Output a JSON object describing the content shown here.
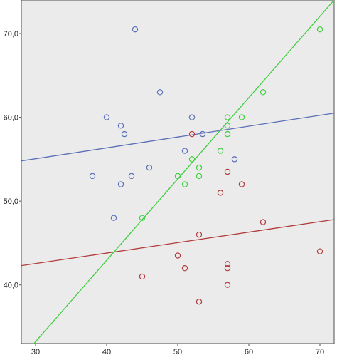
{
  "chart_data": {
    "type": "scatter",
    "title": "",
    "xlabel": "",
    "ylabel": "",
    "xlim": [
      28,
      72
    ],
    "ylim": [
      33,
      74
    ],
    "x_ticks": [
      {
        "value": 30,
        "label": "30"
      },
      {
        "value": 40,
        "label": "40"
      },
      {
        "value": 50,
        "label": "50"
      },
      {
        "value": 60,
        "label": "60"
      },
      {
        "value": 70,
        "label": "70"
      }
    ],
    "y_ticks": [
      {
        "value": 40,
        "label": "40,0"
      },
      {
        "value": 50,
        "label": "50,0"
      },
      {
        "value": 60,
        "label": "60,0"
      },
      {
        "value": 70,
        "label": "70,0"
      }
    ],
    "grid": false,
    "background": "#ebebeb",
    "series": [
      {
        "color": "#5a6fb8",
        "points": [
          {
            "x": 38,
            "y": 53
          },
          {
            "x": 40,
            "y": 60
          },
          {
            "x": 41,
            "y": 48
          },
          {
            "x": 42,
            "y": 59
          },
          {
            "x": 42,
            "y": 52
          },
          {
            "x": 42.5,
            "y": 58
          },
          {
            "x": 43.5,
            "y": 53
          },
          {
            "x": 44,
            "y": 70.5
          },
          {
            "x": 46,
            "y": 54
          },
          {
            "x": 47.5,
            "y": 63
          },
          {
            "x": 51,
            "y": 56
          },
          {
            "x": 52,
            "y": 60
          },
          {
            "x": 53.5,
            "y": 58
          },
          {
            "x": 58,
            "y": 55
          }
        ],
        "fit_line": {
          "x": [
            28,
            72
          ],
          "y": [
            54.8,
            60.5
          ]
        }
      },
      {
        "color": "#b23a3a",
        "points": [
          {
            "x": 45,
            "y": 41
          },
          {
            "x": 50,
            "y": 43.5
          },
          {
            "x": 51,
            "y": 42
          },
          {
            "x": 52,
            "y": 58
          },
          {
            "x": 53,
            "y": 46
          },
          {
            "x": 53,
            "y": 38
          },
          {
            "x": 56,
            "y": 51
          },
          {
            "x": 57,
            "y": 53.5
          },
          {
            "x": 57,
            "y": 42.5
          },
          {
            "x": 57,
            "y": 42
          },
          {
            "x": 57,
            "y": 40
          },
          {
            "x": 59,
            "y": 52
          },
          {
            "x": 62,
            "y": 47.5
          },
          {
            "x": 70,
            "y": 44
          }
        ],
        "fit_line": {
          "x": [
            28,
            72
          ],
          "y": [
            42.3,
            47.8
          ]
        }
      },
      {
        "color": "#3ecf3e",
        "points": [
          {
            "x": 45,
            "y": 48
          },
          {
            "x": 50,
            "y": 53
          },
          {
            "x": 51,
            "y": 52
          },
          {
            "x": 52,
            "y": 55
          },
          {
            "x": 53,
            "y": 54
          },
          {
            "x": 53,
            "y": 53
          },
          {
            "x": 56,
            "y": 56
          },
          {
            "x": 57,
            "y": 60
          },
          {
            "x": 57,
            "y": 59
          },
          {
            "x": 57,
            "y": 58
          },
          {
            "x": 59,
            "y": 60
          },
          {
            "x": 62,
            "y": 63
          },
          {
            "x": 70,
            "y": 70.5
          }
        ],
        "fit_line": {
          "x": [
            27.5,
            72
          ],
          "y": [
            30.8,
            74
          ]
        }
      }
    ]
  }
}
